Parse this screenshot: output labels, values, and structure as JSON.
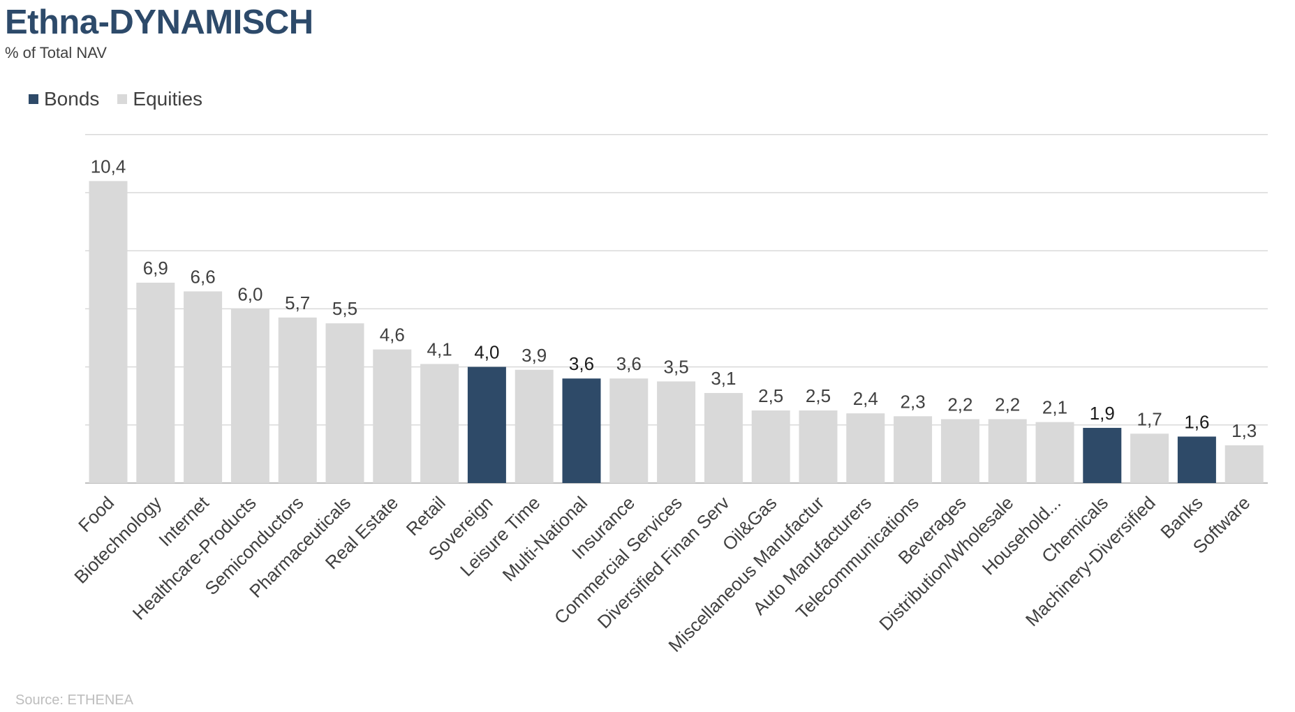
{
  "header": {
    "title": "Ethna-DYNAMISCH",
    "subtitle": "% of Total NAV"
  },
  "footer": {
    "source": "Source: ETHENEA"
  },
  "colors": {
    "bonds": "#2e4a68",
    "equities": "#d9d9d9",
    "gridline": "#d9d9d9",
    "label_bonds": "#1a1a1a",
    "label_equities": "#404040"
  },
  "chart_data": {
    "type": "bar",
    "title": "Ethna-DYNAMISCH",
    "subtitle": "% of Total NAV",
    "xlabel": "",
    "ylabel": "",
    "ylim": [
      0,
      12
    ],
    "grid": true,
    "legend_placement": "top-left",
    "series": [
      {
        "name": "Bonds",
        "color": "#2e4a68"
      },
      {
        "name": "Equities",
        "color": "#d9d9d9"
      }
    ],
    "categories": [
      "Food",
      "Biotechnology",
      "Internet",
      "Healthcare-Products",
      "Semiconductors",
      "Pharmaceuticals",
      "Real Estate",
      "Retail",
      "Sovereign",
      "Leisure Time",
      "Multi-National",
      "Insurance",
      "Commercial Services",
      "Diversified Finan Serv",
      "Oil&Gas",
      "Miscellaneous Manufactur",
      "Auto Manufacturers",
      "Telecommunications",
      "Beverages",
      "Distribution/Wholesale",
      "Household...",
      "Chemicals",
      "Machinery-Diversified",
      "Banks",
      "Software"
    ],
    "values": [
      10.4,
      6.9,
      6.6,
      6.0,
      5.7,
      5.5,
      4.6,
      4.1,
      4.0,
      3.9,
      3.6,
      3.6,
      3.5,
      3.1,
      2.5,
      2.5,
      2.4,
      2.3,
      2.2,
      2.2,
      2.1,
      1.9,
      1.7,
      1.6,
      1.3
    ],
    "value_labels": [
      "10,4",
      "6,9",
      "6,6",
      "6,0",
      "5,7",
      "5,5",
      "4,6",
      "4,1",
      "4,0",
      "3,9",
      "3,6",
      "3,6",
      "3,5",
      "3,1",
      "2,5",
      "2,5",
      "2,4",
      "2,3",
      "2,2",
      "2,2",
      "2,1",
      "1,9",
      "1,7",
      "1,6",
      "1,3"
    ],
    "asset_class": [
      "Equities",
      "Equities",
      "Equities",
      "Equities",
      "Equities",
      "Equities",
      "Equities",
      "Equities",
      "Bonds",
      "Equities",
      "Bonds",
      "Equities",
      "Equities",
      "Equities",
      "Equities",
      "Equities",
      "Equities",
      "Equities",
      "Equities",
      "Equities",
      "Equities",
      "Bonds",
      "Equities",
      "Bonds",
      "Equities"
    ]
  }
}
